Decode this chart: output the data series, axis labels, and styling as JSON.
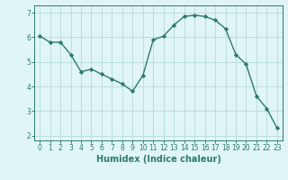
{
  "x": [
    0,
    1,
    2,
    3,
    4,
    5,
    6,
    7,
    8,
    9,
    10,
    11,
    12,
    13,
    14,
    15,
    16,
    17,
    18,
    19,
    20,
    21,
    22,
    23
  ],
  "y": [
    6.05,
    5.8,
    5.8,
    5.3,
    4.6,
    4.7,
    4.5,
    4.3,
    4.1,
    3.8,
    4.45,
    5.9,
    6.05,
    6.5,
    6.85,
    6.9,
    6.85,
    6.7,
    6.35,
    5.3,
    4.9,
    3.6,
    3.1,
    2.3
  ],
  "line_color": "#2d7a6e",
  "marker": "D",
  "marker_size": 2.2,
  "bg_color": "#e0f5f5",
  "grid_color": "#b8dada",
  "xlabel": "Humidex (Indice chaleur)",
  "xlim": [
    -0.5,
    23.5
  ],
  "ylim": [
    1.8,
    7.3
  ],
  "yticks": [
    2,
    3,
    4,
    5,
    6,
    7
  ],
  "xticks": [
    0,
    1,
    2,
    3,
    4,
    5,
    6,
    7,
    8,
    9,
    10,
    11,
    12,
    13,
    14,
    15,
    16,
    17,
    18,
    19,
    20,
    21,
    22,
    23
  ],
  "tick_label_fontsize": 5.5,
  "xlabel_fontsize": 7.0
}
